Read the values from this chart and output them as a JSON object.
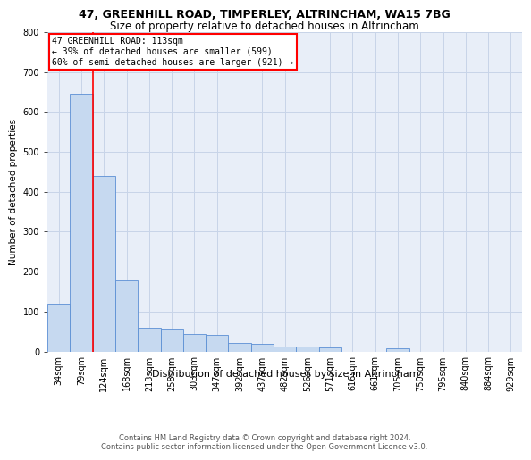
{
  "title_line1": "47, GREENHILL ROAD, TIMPERLEY, ALTRINCHAM, WA15 7BG",
  "title_line2": "Size of property relative to detached houses in Altrincham",
  "xlabel": "Distribution of detached houses by size in Altrincham",
  "ylabel": "Number of detached properties",
  "categories": [
    "34sqm",
    "79sqm",
    "124sqm",
    "168sqm",
    "213sqm",
    "258sqm",
    "303sqm",
    "347sqm",
    "392sqm",
    "437sqm",
    "482sqm",
    "526sqm",
    "571sqm",
    "616sqm",
    "661sqm",
    "705sqm",
    "750sqm",
    "795sqm",
    "840sqm",
    "884sqm",
    "929sqm"
  ],
  "values": [
    120,
    645,
    440,
    178,
    60,
    57,
    43,
    42,
    22,
    20,
    13,
    12,
    9,
    0,
    0,
    7,
    0,
    0,
    0,
    0,
    0
  ],
  "bar_color": "#c6d9f0",
  "bar_edge_color": "#5b8fd4",
  "property_line_x": 1.5,
  "annotation_text": "47 GREENHILL ROAD: 113sqm\n← 39% of detached houses are smaller (599)\n60% of semi-detached houses are larger (921) →",
  "annotation_box_color": "white",
  "annotation_box_edge_color": "red",
  "property_line_color": "red",
  "ylim": [
    0,
    800
  ],
  "yticks": [
    0,
    100,
    200,
    300,
    400,
    500,
    600,
    700,
    800
  ],
  "grid_color": "#c8d4e8",
  "footer_line1": "Contains HM Land Registry data © Crown copyright and database right 2024.",
  "footer_line2": "Contains public sector information licensed under the Open Government Licence v3.0.",
  "bg_color": "#e8eef8",
  "fig_bg_color": "#ffffff",
  "title_fontsize": 9,
  "subtitle_fontsize": 8.5,
  "xlabel_fontsize": 8,
  "ylabel_fontsize": 7.5,
  "tick_fontsize": 7,
  "footer_fontsize": 6,
  "annot_fontsize": 7
}
